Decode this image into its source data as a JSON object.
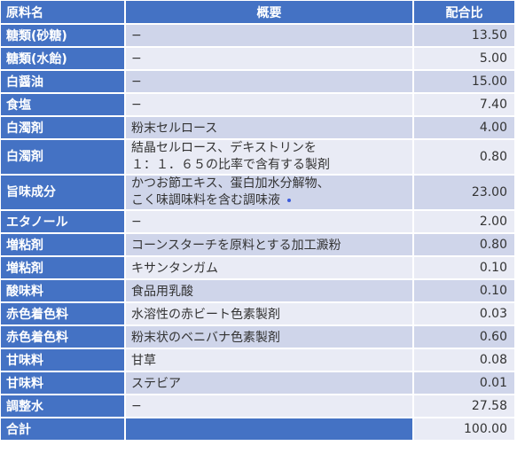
{
  "headers": {
    "name": "原料名",
    "desc": "概要",
    "ratio": "配合比"
  },
  "rows": [
    {
      "name": "糖類(砂糖)",
      "desc": "−",
      "ratio": "13.50"
    },
    {
      "name": "糖類(水飴)",
      "desc": "−",
      "ratio": "5.00"
    },
    {
      "name": "白醤油",
      "desc": "−",
      "ratio": "15.00"
    },
    {
      "name": "食塩",
      "desc": "−",
      "ratio": "7.40"
    },
    {
      "name": "白濁剤",
      "desc": "粉末セルロース",
      "ratio": "4.00"
    },
    {
      "name": "白濁剤",
      "desc_line1": "結晶セルロース、デキストリンを",
      "desc_line2": "１：１．６５の比率で含有する製剤",
      "ratio": "0.80"
    },
    {
      "name": "旨味成分",
      "desc_line1": "かつお節エキス、蛋白加水分解物、",
      "desc_line2": "こく味調味料を含む調味液",
      "ratio": "23.00"
    },
    {
      "name": "エタノール",
      "desc": "−",
      "ratio": "2.00"
    },
    {
      "name": "増粘剤",
      "desc": "コーンスターチを原料とする加工澱粉",
      "ratio": "0.80"
    },
    {
      "name": "増粘剤",
      "desc": "キサンタンガム",
      "ratio": "0.10"
    },
    {
      "name": "酸味料",
      "desc": "食品用乳酸",
      "ratio": "0.10"
    },
    {
      "name": "赤色着色料",
      "desc": "水溶性の赤ビート色素製剤",
      "ratio": "0.03"
    },
    {
      "name": "赤色着色料",
      "desc": "粉末状のベニバナ色素製剤",
      "ratio": "0.60"
    },
    {
      "name": "甘味料",
      "desc": "甘草",
      "ratio": "0.08"
    },
    {
      "name": "甘味料",
      "desc": "ステビア",
      "ratio": "0.01"
    },
    {
      "name": "調整水",
      "desc": "−",
      "ratio": "27.58"
    }
  ],
  "total": {
    "name": "合計",
    "ratio": "100.00"
  },
  "colors": {
    "header": "#4472c4",
    "band_dark": "#cfd5ea",
    "band_light": "#e9ebf5"
  }
}
